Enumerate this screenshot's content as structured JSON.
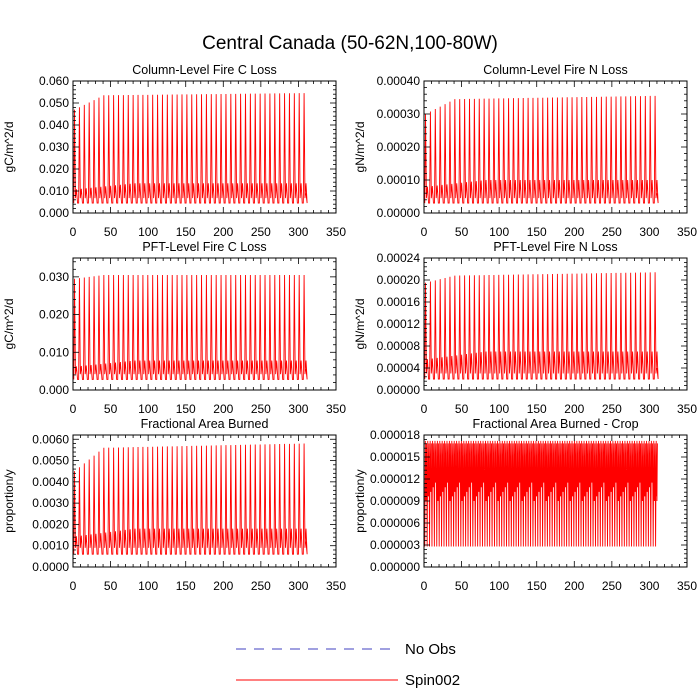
{
  "figure": {
    "title": "Central Canada (50-62N,100-80W)"
  },
  "legend": {
    "items": [
      {
        "label": "No Obs",
        "color": "#4040c0",
        "dash": true
      },
      {
        "label": "Spin002",
        "color": "#ff0000",
        "dash": false
      }
    ]
  },
  "chart_data": [
    {
      "type": "line",
      "title": "Column-Level Fire C Loss",
      "ylabel": "gC/m^2/d",
      "xlim": [
        0,
        350
      ],
      "ylim": [
        0,
        0.06
      ],
      "xticks": [
        "0",
        "50",
        "100",
        "150",
        "200",
        "250",
        "300",
        "350"
      ],
      "yticks": [
        "0.000",
        "0.010",
        "0.020",
        "0.030",
        "0.040",
        "0.050",
        "0.060"
      ],
      "series": [
        {
          "name": "Spin002",
          "pattern": "annual-cycle",
          "x_range": [
            1,
            310
          ],
          "period": 6.5,
          "peak_start": 0.047,
          "peak_plateau": 0.0535,
          "peak_end": 0.0545,
          "secondary_peak": 0.0135,
          "minimum": 0.0045
        }
      ]
    },
    {
      "type": "line",
      "title": "Column-Level Fire N Loss",
      "ylabel": "gN/m^2/d",
      "xlim": [
        0,
        350
      ],
      "ylim": [
        0,
        0.0004
      ],
      "xticks": [
        "0",
        "50",
        "100",
        "150",
        "200",
        "250",
        "300",
        "350"
      ],
      "yticks": [
        "0.00000",
        "0.00010",
        "0.00020",
        "0.00030",
        "0.00040"
      ],
      "series": [
        {
          "name": "Spin002",
          "pattern": "annual-cycle",
          "x_range": [
            1,
            310
          ],
          "period": 6.5,
          "peak_start": 0.0003,
          "peak_plateau": 0.000345,
          "peak_end": 0.000355,
          "secondary_peak": 0.0001,
          "minimum": 3e-05
        }
      ]
    },
    {
      "type": "line",
      "title": "PFT-Level Fire C Loss",
      "ylabel": "gC/m^2/d",
      "xlim": [
        0,
        350
      ],
      "ylim": [
        0,
        0.035
      ],
      "xticks": [
        "0",
        "50",
        "100",
        "150",
        "200",
        "250",
        "300",
        "350"
      ],
      "yticks": [
        "0.000",
        "0.010",
        "0.020",
        "0.030"
      ],
      "series": [
        {
          "name": "Spin002",
          "pattern": "annual-cycle",
          "x_range": [
            1,
            310
          ],
          "period": 6.5,
          "peak_start": 0.0295,
          "peak_plateau": 0.0305,
          "peak_end": 0.0305,
          "secondary_peak": 0.0078,
          "minimum": 0.0028
        }
      ]
    },
    {
      "type": "line",
      "title": "PFT-Level Fire N Loss",
      "ylabel": "gN/m^2/d",
      "xlim": [
        0,
        350
      ],
      "ylim": [
        0,
        0.00024
      ],
      "xticks": [
        "0",
        "50",
        "100",
        "150",
        "200",
        "250",
        "300",
        "350"
      ],
      "yticks": [
        "0.00000",
        "0.00004",
        "0.00008",
        "0.00012",
        "0.00016",
        "0.00020",
        "0.00024"
      ],
      "series": [
        {
          "name": "Spin002",
          "pattern": "annual-cycle",
          "x_range": [
            1,
            310
          ],
          "period": 6.5,
          "peak_start": 0.000195,
          "peak_plateau": 0.000208,
          "peak_end": 0.000214,
          "secondary_peak": 7e-05,
          "minimum": 2e-05
        }
      ]
    },
    {
      "type": "line",
      "title": "Fractional Area Burned",
      "ylabel": "proportion/y",
      "xlim": [
        0,
        350
      ],
      "ylim": [
        0,
        0.0062
      ],
      "xticks": [
        "0",
        "50",
        "100",
        "150",
        "200",
        "250",
        "300",
        "350"
      ],
      "yticks": [
        "0.0000",
        "0.0010",
        "0.0020",
        "0.0030",
        "0.0040",
        "0.0050",
        "0.0060"
      ],
      "series": [
        {
          "name": "Spin002",
          "pattern": "annual-cycle",
          "x_range": [
            1,
            310
          ],
          "period": 6.5,
          "peak_start": 0.0045,
          "peak_plateau": 0.0056,
          "peak_end": 0.0058,
          "secondary_peak": 0.0018,
          "minimum": 0.0006
        }
      ]
    },
    {
      "type": "line",
      "title": "Fractional Area Burned - Crop",
      "ylabel": "proportion/y",
      "xlim": [
        0,
        350
      ],
      "ylim": [
        0,
        1.8e-05
      ],
      "xticks": [
        "0",
        "50",
        "100",
        "150",
        "200",
        "250",
        "300",
        "350"
      ],
      "yticks": [
        "0.000000",
        "0.000003",
        "0.000006",
        "0.000009",
        "0.000012",
        "0.000015",
        "0.000018"
      ],
      "series": [
        {
          "name": "Spin002",
          "pattern": "dense-oscillation",
          "x_range": [
            1,
            310
          ],
          "period": 3.2,
          "peak": 1.72e-05,
          "minimum": 2.8e-06,
          "mid_band": [
            9e-06,
            1.15e-05
          ]
        }
      ]
    }
  ]
}
